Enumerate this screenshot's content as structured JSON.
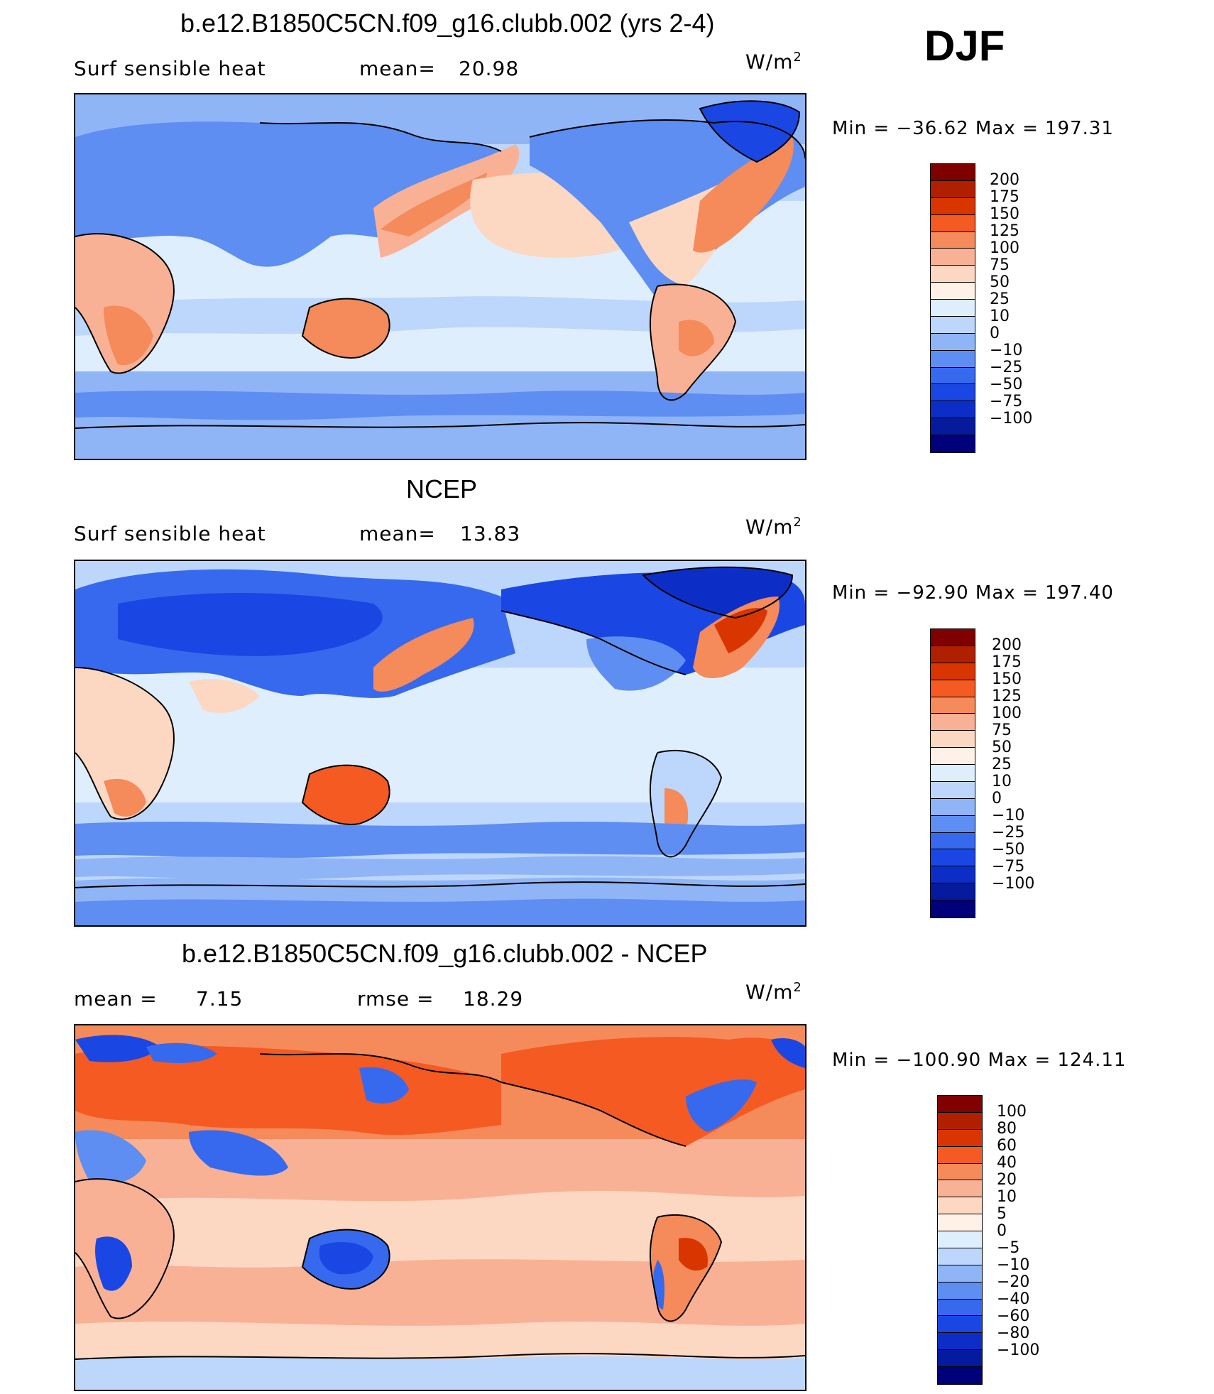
{
  "season": "DJF",
  "units_base": "W/m",
  "units_exp": "2",
  "panels": [
    {
      "title": "b.e12.B1850C5CN.f09_g16.clubb.002 (yrs 2-4)",
      "left_label": "Surf  sensible  heat",
      "stat_label": "mean=",
      "stat_value": "20.98",
      "min_max": "Min  =  −36.62  Max  =  197.31",
      "colorbar": {
        "colors": [
          "#800000",
          "#b01f00",
          "#d93500",
          "#f55a22",
          "#f58a5a",
          "#f9b195",
          "#fcd7c2",
          "#fff1e5",
          "#dfeefd",
          "#bcd7fb",
          "#8fb5f7",
          "#5e8ef2",
          "#3769ee",
          "#1a47e3",
          "#0d2ec6",
          "#061a9e",
          "#00007a"
        ],
        "labels": [
          "200",
          "175",
          "150",
          "125",
          "100",
          "75",
          "50",
          "25",
          "10",
          "0",
          "−10",
          "−25",
          "−50",
          "−75",
          "−100"
        ]
      }
    },
    {
      "title": "NCEP",
      "left_label": "Surf  sensible  heat",
      "stat_label": "mean=",
      "stat_value": "13.83",
      "min_max": "Min  =  −92.90  Max  =  197.40",
      "colorbar": {
        "colors": [
          "#800000",
          "#b01f00",
          "#d93500",
          "#f55a22",
          "#f58a5a",
          "#f9b195",
          "#fcd7c2",
          "#fff1e5",
          "#dfeefd",
          "#bcd7fb",
          "#8fb5f7",
          "#5e8ef2",
          "#3769ee",
          "#1a47e3",
          "#0d2ec6",
          "#061a9e",
          "#00007a"
        ],
        "labels": [
          "200",
          "175",
          "150",
          "125",
          "100",
          "75",
          "50",
          "25",
          "10",
          "0",
          "−10",
          "−25",
          "−50",
          "−75",
          "−100"
        ]
      }
    },
    {
      "title": "b.e12.B1850C5CN.f09_g16.clubb.002 - NCEP",
      "left_label": "mean  =",
      "left_value": "7.15",
      "stat_label": "rmse  =",
      "stat_value": "18.29",
      "min_max": "Min  =  −100.90  Max  =  124.11",
      "colorbar": {
        "colors": [
          "#800000",
          "#b01f00",
          "#d93500",
          "#f55a22",
          "#f58a5a",
          "#f9b195",
          "#fcd7c2",
          "#fff1e5",
          "#dfeefd",
          "#bcd7fb",
          "#8fb5f7",
          "#5e8ef2",
          "#3769ee",
          "#1a47e3",
          "#0d2ec6",
          "#061a9e",
          "#00007a"
        ],
        "labels": [
          "100",
          "80",
          "60",
          "40",
          "20",
          "10",
          "5",
          "0",
          "−5",
          "−10",
          "−20",
          "−40",
          "−60",
          "−80",
          "−100"
        ]
      }
    }
  ]
}
